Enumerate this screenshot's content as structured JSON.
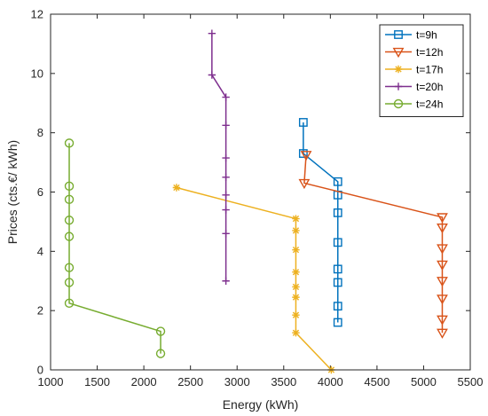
{
  "chart_data": {
    "type": "line",
    "xlabel": "Energy (kWh)",
    "ylabel": "Prices (cts.€/ kWh)",
    "xlim": [
      1000,
      5500
    ],
    "ylim": [
      0,
      12
    ],
    "xticks": [
      1000,
      1500,
      2000,
      2500,
      3000,
      3500,
      4000,
      4500,
      5000,
      5500
    ],
    "yticks": [
      0,
      2,
      4,
      6,
      8,
      10,
      12
    ],
    "grid": false,
    "legend_position": "top-right",
    "series": [
      {
        "name": "t=9h",
        "color": "#0072BD",
        "marker": "square",
        "points": [
          [
            3710,
            8.35
          ],
          [
            3710,
            7.3
          ],
          [
            4080,
            6.35
          ],
          [
            4080,
            5.9
          ],
          [
            4080,
            5.3
          ],
          [
            4080,
            4.3
          ],
          [
            4080,
            3.4
          ],
          [
            4080,
            2.95
          ],
          [
            4080,
            2.15
          ],
          [
            4080,
            1.6
          ]
        ]
      },
      {
        "name": "t=12h",
        "color": "#D95319",
        "marker": "triangle-down",
        "points": [
          [
            3740,
            7.25
          ],
          [
            3720,
            6.3
          ],
          [
            5200,
            5.15
          ],
          [
            5200,
            4.8
          ],
          [
            5200,
            4.1
          ],
          [
            5200,
            3.55
          ],
          [
            5200,
            3.0
          ],
          [
            5200,
            2.4
          ],
          [
            5200,
            1.7
          ],
          [
            5200,
            1.25
          ]
        ]
      },
      {
        "name": "t=17h",
        "color": "#EDB120",
        "marker": "asterisk",
        "points": [
          [
            2350,
            6.15
          ],
          [
            3630,
            5.1
          ],
          [
            3630,
            4.7
          ],
          [
            3630,
            4.05
          ],
          [
            3630,
            3.3
          ],
          [
            3630,
            2.8
          ],
          [
            3630,
            2.45
          ],
          [
            3630,
            1.85
          ],
          [
            3630,
            1.25
          ],
          [
            4010,
            0.0
          ]
        ]
      },
      {
        "name": "t=20h",
        "color": "#7E2F8E",
        "marker": "plus",
        "points": [
          [
            2730,
            11.35
          ],
          [
            2730,
            9.95
          ],
          [
            2880,
            9.2
          ],
          [
            2880,
            8.25
          ],
          [
            2880,
            7.15
          ],
          [
            2880,
            6.5
          ],
          [
            2880,
            5.9
          ],
          [
            2880,
            5.4
          ],
          [
            2880,
            4.6
          ],
          [
            2880,
            3.0
          ]
        ]
      },
      {
        "name": "t=24h",
        "color": "#77AC30",
        "marker": "circle",
        "points": [
          [
            1200,
            7.65
          ],
          [
            1200,
            6.2
          ],
          [
            1200,
            5.75
          ],
          [
            1200,
            5.05
          ],
          [
            1200,
            4.5
          ],
          [
            1200,
            3.45
          ],
          [
            1200,
            2.95
          ],
          [
            1200,
            2.25
          ],
          [
            2180,
            1.3
          ],
          [
            2180,
            0.55
          ]
        ]
      }
    ]
  }
}
